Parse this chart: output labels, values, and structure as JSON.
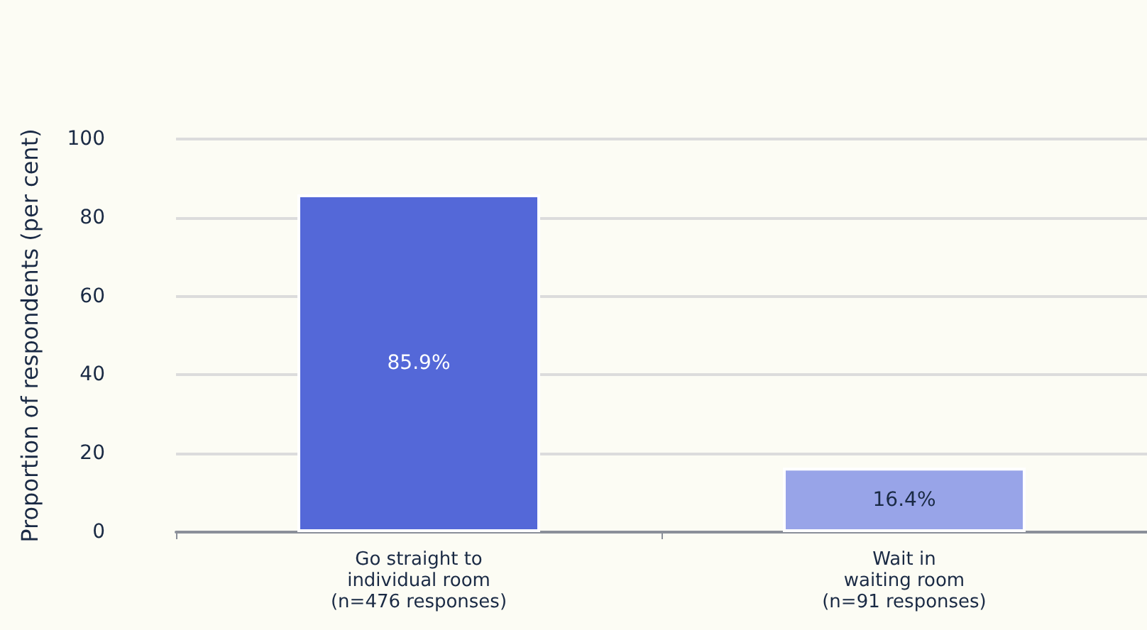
{
  "chart_data": {
    "type": "bar",
    "ylabel": "Proportion of respondents (per cent)",
    "categories": [
      "Go straight to\nindividual room\n(n=476 responses)",
      "Wait in\nwaiting room\n(n=91 responses)"
    ],
    "values": [
      85.9,
      16.4
    ],
    "colors": [
      "#5468d8",
      "#98a4e8"
    ],
    "value_labels": [
      "85.9%",
      "16.4%"
    ],
    "ylim": [
      0,
      100
    ],
    "yticks": [
      0,
      20,
      40,
      60,
      80,
      100
    ],
    "grid": "y"
  }
}
